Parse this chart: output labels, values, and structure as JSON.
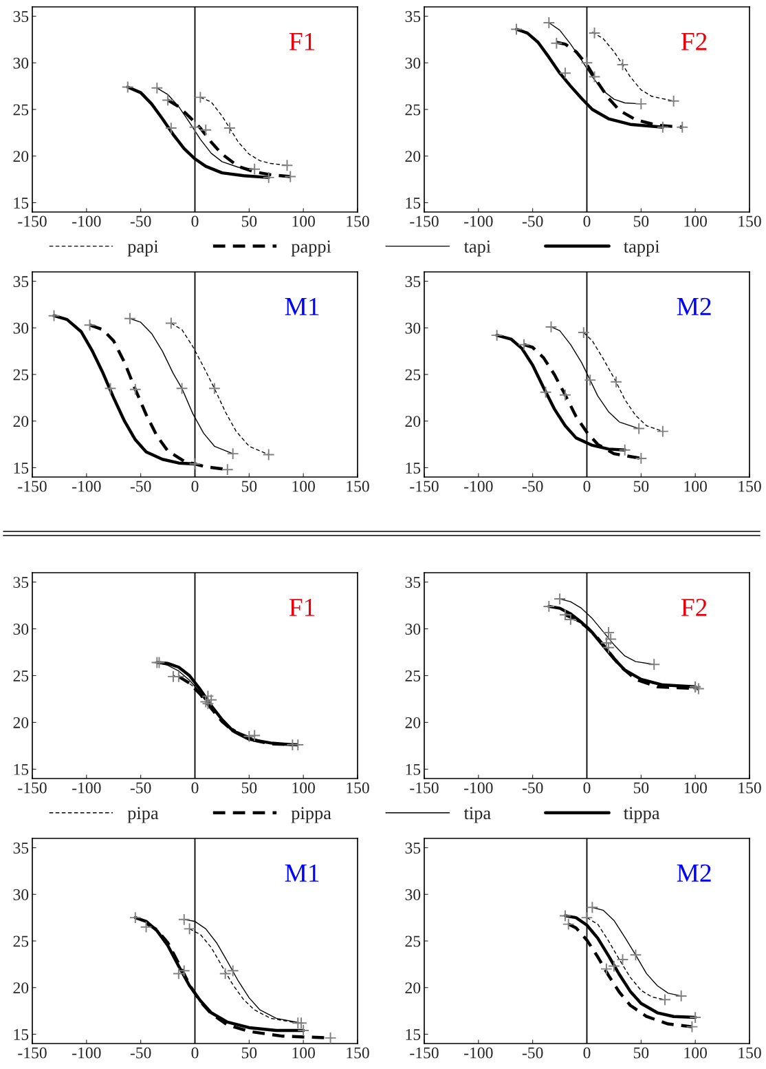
{
  "chart_data": [
    {
      "type": "line",
      "title": "F1",
      "xlim": [
        -150,
        150
      ],
      "ylim": [
        14,
        36
      ],
      "xticks": [
        -150,
        -100,
        -50,
        0,
        50,
        100,
        150
      ],
      "yticks": [
        15,
        20,
        25,
        30,
        35
      ],
      "legend": "bottom",
      "ref_lines": [
        {
          "axis": "x",
          "value": 0,
          "color": "#000000"
        }
      ],
      "series": [
        {
          "type": "line",
          "name": "papi",
          "line_style": "dashed",
          "color": "#000000",
          "x": [
            5,
            15,
            25,
            32,
            40,
            50,
            60,
            70,
            85
          ],
          "values": [
            26.3,
            25.8,
            24.3,
            23,
            21.5,
            20.2,
            19.5,
            19.2,
            19.0
          ]
        },
        {
          "type": "line",
          "name": "pappi",
          "line_style": "dashed",
          "color": "#000000",
          "x": [
            -25,
            -15,
            -5,
            5,
            15,
            25,
            40,
            55,
            70,
            88
          ],
          "values": [
            26.0,
            25.3,
            24.2,
            23.0,
            21.5,
            20.2,
            18.9,
            18.3,
            18.0,
            17.8
          ]
        },
        {
          "type": "line",
          "name": "tapi",
          "line_style": "solid",
          "color": "#000000",
          "x": [
            -35,
            -25,
            -15,
            -5,
            5,
            15,
            25,
            40,
            55
          ],
          "values": [
            27.3,
            26.6,
            25.3,
            23.6,
            21.8,
            20.3,
            19.4,
            18.8,
            18.6
          ]
        },
        {
          "type": "line",
          "name": "tappi",
          "line_style": "solid",
          "color": "#000000",
          "x": [
            -62,
            -50,
            -40,
            -30,
            -20,
            -10,
            0,
            10,
            25,
            45,
            68
          ],
          "values": [
            27.4,
            26.8,
            25.6,
            24.0,
            22.3,
            20.8,
            19.7,
            18.9,
            18.2,
            17.9,
            17.7
          ]
        },
        {
          "type": "scatter",
          "marker": "cross",
          "color": "#808080",
          "x": [
            5,
            32,
            85,
            -25,
            10,
            88,
            -35,
            0,
            55,
            -62,
            -22,
            68
          ],
          "values": [
            26.3,
            23,
            19,
            26,
            22.8,
            17.8,
            27.3,
            23.1,
            18.6,
            27.4,
            23.0,
            17.7
          ]
        }
      ]
    },
    {
      "type": "line",
      "title": "F2",
      "xlim": [
        -150,
        150
      ],
      "ylim": [
        14,
        36
      ],
      "xticks": [
        -150,
        -100,
        -50,
        0,
        50,
        100,
        150
      ],
      "yticks": [
        15,
        20,
        25,
        30,
        35
      ],
      "ref_lines": [
        {
          "axis": "x",
          "value": 0,
          "color": "#000000"
        }
      ],
      "series": [
        {
          "type": "line",
          "line_style": "dashed",
          "color": "#000000",
          "x": [
            5,
            15,
            25,
            33,
            40,
            50,
            60,
            80
          ],
          "values": [
            33.3,
            32.6,
            31.2,
            29.8,
            28.5,
            27.1,
            26.4,
            25.9
          ]
        },
        {
          "type": "line",
          "line_style": "dashed",
          "color": "#000000",
          "x": [
            -28,
            -20,
            -10,
            0,
            10,
            20,
            30,
            45,
            65,
            88
          ],
          "values": [
            32.2,
            32.0,
            31.2,
            29.8,
            27.9,
            26.2,
            24.9,
            23.9,
            23.3,
            23.1
          ]
        },
        {
          "type": "line",
          "line_style": "solid",
          "color": "#000000",
          "x": [
            -35,
            -25,
            -15,
            -5,
            5,
            15,
            25,
            35,
            50
          ],
          "values": [
            34.3,
            33.5,
            32.0,
            30.3,
            28.5,
            27.0,
            26.1,
            25.7,
            25.6
          ]
        },
        {
          "type": "line",
          "line_style": "solid",
          "color": "#000000",
          "x": [
            -65,
            -55,
            -45,
            -35,
            -25,
            -15,
            -5,
            5,
            20,
            40,
            70
          ],
          "values": [
            33.6,
            33.2,
            32.2,
            30.6,
            28.9,
            27.5,
            26.2,
            25.0,
            24.0,
            23.4,
            23.1
          ]
        },
        {
          "type": "scatter",
          "marker": "cross",
          "color": "#808080",
          "x": [
            7,
            33,
            80,
            -28,
            7,
            88,
            -35,
            0,
            50,
            -65,
            -20,
            70
          ],
          "values": [
            33.2,
            29.8,
            25.9,
            32.1,
            28.5,
            23.1,
            34.3,
            30.0,
            25.6,
            33.6,
            28.9,
            23.1
          ]
        }
      ]
    },
    {
      "type": "line",
      "title": "M1",
      "xlim": [
        -150,
        150
      ],
      "ylim": [
        14,
        36
      ],
      "xticks": [
        -150,
        -100,
        -50,
        0,
        50,
        100,
        150
      ],
      "yticks": [
        15,
        20,
        25,
        30,
        35
      ],
      "ref_lines": [
        {
          "axis": "x",
          "value": 0,
          "color": "#000000"
        }
      ],
      "series": [
        {
          "type": "line",
          "line_style": "dashed",
          "color": "#000000",
          "x": [
            -22,
            -12,
            -2,
            8,
            18,
            28,
            38,
            50,
            68
          ],
          "values": [
            30.5,
            29.8,
            28.0,
            25.8,
            23.5,
            21.0,
            18.9,
            17.3,
            16.4
          ]
        },
        {
          "type": "line",
          "line_style": "dashed",
          "color": "#000000",
          "x": [
            -97,
            -85,
            -75,
            -65,
            -55,
            -45,
            -35,
            -25,
            -10,
            10,
            30
          ],
          "values": [
            30.3,
            29.8,
            28.6,
            26.3,
            23.4,
            20.7,
            18.4,
            16.8,
            15.7,
            15.1,
            14.8
          ]
        },
        {
          "type": "line",
          "line_style": "solid",
          "color": "#000000",
          "x": [
            -60,
            -50,
            -40,
            -30,
            -20,
            -12,
            -2,
            8,
            18,
            35
          ],
          "values": [
            31,
            30.6,
            29.4,
            27.5,
            25.1,
            23.5,
            20.8,
            18.7,
            17.3,
            16.5
          ]
        },
        {
          "type": "line",
          "line_style": "solid",
          "color": "#000000",
          "x": [
            -130,
            -118,
            -105,
            -95,
            -85,
            -75,
            -65,
            -55,
            -45,
            -30,
            -15,
            0
          ],
          "values": [
            31.3,
            30.9,
            29.6,
            27.6,
            25.2,
            22.5,
            20.0,
            18.0,
            16.7,
            15.9,
            15.5,
            15.4
          ]
        },
        {
          "type": "scatter",
          "marker": "cross",
          "color": "#808080",
          "x": [
            -22,
            18,
            68,
            -97,
            -55,
            30,
            -60,
            -12,
            35,
            -130,
            -78,
            0
          ],
          "values": [
            30.5,
            23.5,
            16.4,
            30.3,
            23.4,
            14.8,
            31,
            23.5,
            16.5,
            31.3,
            23.5,
            15.4
          ]
        }
      ]
    },
    {
      "type": "line",
      "title": "M2",
      "xlim": [
        -150,
        150
      ],
      "ylim": [
        14,
        36
      ],
      "xticks": [
        -150,
        -100,
        -50,
        0,
        50,
        100,
        150
      ],
      "yticks": [
        15,
        20,
        25,
        30,
        35
      ],
      "ref_lines": [
        {
          "axis": "x",
          "value": 0,
          "color": "#000000"
        }
      ],
      "series": [
        {
          "type": "line",
          "line_style": "dashed",
          "color": "#000000",
          "x": [
            -3,
            5,
            15,
            27,
            35,
            45,
            55,
            70
          ],
          "values": [
            29.5,
            28.6,
            26.7,
            24.2,
            22.3,
            20.6,
            19.5,
            18.9
          ]
        },
        {
          "type": "line",
          "line_style": "dashed",
          "color": "#000000",
          "x": [
            -58,
            -50,
            -40,
            -30,
            -20,
            -10,
            0,
            10,
            25,
            50
          ],
          "values": [
            28.2,
            27.9,
            26.8,
            25.0,
            22.8,
            20.5,
            18.8,
            17.5,
            16.5,
            16.0
          ]
        },
        {
          "type": "line",
          "line_style": "solid",
          "color": "#000000",
          "x": [
            -33,
            -25,
            -15,
            -5,
            3,
            10,
            20,
            30,
            48
          ],
          "values": [
            30.1,
            29.7,
            28.2,
            26.3,
            24.4,
            22.7,
            21.0,
            19.9,
            19.2
          ]
        },
        {
          "type": "line",
          "line_style": "solid",
          "color": "#000000",
          "x": [
            -83,
            -70,
            -60,
            -50,
            -40,
            -30,
            -20,
            -10,
            5,
            20,
            35
          ],
          "values": [
            29.2,
            28.8,
            27.8,
            26.0,
            23.6,
            21.3,
            19.5,
            18.2,
            17.4,
            17.0,
            16.9
          ]
        },
        {
          "type": "scatter",
          "marker": "cross",
          "color": "#808080",
          "x": [
            -3,
            27,
            70,
            -58,
            -20,
            50,
            -33,
            3,
            48,
            -83,
            -38,
            35
          ],
          "values": [
            29.5,
            24.2,
            18.9,
            28.2,
            22.8,
            16.0,
            30.1,
            24.4,
            19.2,
            29.2,
            23.1,
            16.9
          ]
        }
      ]
    },
    {
      "type": "line",
      "title": "F1",
      "xlim": [
        -150,
        150
      ],
      "ylim": [
        14,
        36
      ],
      "xticks": [
        -150,
        -100,
        -50,
        0,
        50,
        100,
        150
      ],
      "yticks": [
        15,
        20,
        25,
        30,
        35
      ],
      "legend": "bottom",
      "ref_lines": [
        {
          "axis": "x",
          "value": 0,
          "color": "#000000"
        }
      ],
      "series": [
        {
          "type": "line",
          "name": "pipa",
          "line_style": "dashed",
          "color": "#000000",
          "x": [
            -20,
            -10,
            0,
            10,
            20,
            30,
            45,
            65,
            95
          ],
          "values": [
            25.0,
            24.6,
            23.7,
            22.3,
            20.9,
            19.7,
            18.6,
            17.9,
            17.6
          ]
        },
        {
          "type": "line",
          "name": "pippa",
          "line_style": "dashed",
          "color": "#000000",
          "x": [
            -15,
            -5,
            5,
            15,
            25,
            35,
            50,
            70,
            95
          ],
          "values": [
            24.9,
            24.2,
            23.0,
            21.5,
            20.1,
            19.1,
            18.2,
            17.7,
            17.6
          ]
        },
        {
          "type": "line",
          "name": "tipa",
          "line_style": "solid",
          "color": "#000000",
          "x": [
            -35,
            -25,
            -15,
            -5,
            5,
            15,
            25,
            35,
            50
          ],
          "values": [
            26.4,
            26.1,
            25.5,
            24.5,
            23.2,
            21.7,
            20.3,
            19.2,
            18.5
          ]
        },
        {
          "type": "line",
          "name": "tippa",
          "line_style": "solid",
          "color": "#000000",
          "x": [
            -35,
            -25,
            -15,
            -5,
            5,
            15,
            25,
            35,
            50,
            70,
            90
          ],
          "values": [
            26.4,
            26.3,
            25.9,
            25.0,
            23.5,
            21.8,
            20.3,
            19.1,
            18.2,
            17.8,
            17.6
          ]
        },
        {
          "type": "scatter",
          "marker": "cross",
          "color": "#808080",
          "x": [
            -20,
            10,
            55,
            -15,
            12,
            95,
            -35,
            15,
            50,
            -33,
            12,
            90
          ],
          "values": [
            24.9,
            22.2,
            18.6,
            24.9,
            22.0,
            17.6,
            26.4,
            22.4,
            18.5,
            26.4,
            22.8,
            17.6
          ]
        }
      ]
    },
    {
      "type": "line",
      "title": "F2",
      "xlim": [
        -150,
        150
      ],
      "ylim": [
        14,
        36
      ],
      "xticks": [
        -150,
        -100,
        -50,
        0,
        50,
        100,
        150
      ],
      "yticks": [
        15,
        20,
        25,
        30,
        35
      ],
      "ref_lines": [
        {
          "axis": "x",
          "value": 0,
          "color": "#000000"
        }
      ],
      "series": [
        {
          "type": "line",
          "line_style": "dashed",
          "color": "#000000",
          "x": [
            -15,
            -5,
            5,
            15,
            25,
            35,
            50,
            70,
            100
          ],
          "values": [
            31.1,
            30.6,
            29.6,
            28.4,
            27.0,
            25.7,
            24.5,
            23.9,
            23.7
          ]
        },
        {
          "type": "line",
          "line_style": "dashed",
          "color": "#000000",
          "x": [
            -20,
            -10,
            0,
            10,
            20,
            30,
            45,
            65,
            103
          ],
          "values": [
            31.5,
            31.0,
            30.2,
            29.0,
            27.6,
            26.1,
            24.6,
            23.8,
            23.6
          ]
        },
        {
          "type": "line",
          "line_style": "solid",
          "color": "#000000",
          "x": [
            -25,
            -15,
            -5,
            5,
            15,
            25,
            35,
            45,
            62
          ],
          "values": [
            33.2,
            32.9,
            32.2,
            31.1,
            29.7,
            28.3,
            27.1,
            26.5,
            26.2
          ]
        },
        {
          "type": "line",
          "line_style": "solid",
          "color": "#000000",
          "x": [
            -35,
            -25,
            -15,
            -5,
            5,
            15,
            25,
            35,
            50,
            70,
            100
          ],
          "values": [
            32.4,
            32.2,
            31.6,
            30.7,
            29.6,
            28.2,
            26.8,
            25.6,
            24.6,
            24.0,
            23.8
          ]
        },
        {
          "type": "scatter",
          "marker": "cross",
          "color": "#808080",
          "x": [
            -15,
            20,
            100,
            -20,
            18,
            103,
            -25,
            20,
            62,
            -35,
            22,
            100
          ],
          "values": [
            31.0,
            28.0,
            23.8,
            31.5,
            28.5,
            23.6,
            33.2,
            29.6,
            26.2,
            32.4,
            28.9,
            23.8
          ]
        }
      ]
    },
    {
      "type": "line",
      "title": "M1",
      "xlim": [
        -150,
        150
      ],
      "ylim": [
        14,
        36
      ],
      "xticks": [
        -150,
        -100,
        -50,
        0,
        50,
        100,
        150
      ],
      "yticks": [
        15,
        20,
        25,
        30,
        35
      ],
      "ref_lines": [
        {
          "axis": "x",
          "value": 0,
          "color": "#000000"
        }
      ],
      "series": [
        {
          "type": "line",
          "line_style": "dashed",
          "color": "#000000",
          "x": [
            -5,
            5,
            15,
            25,
            35,
            45,
            55,
            70,
            95
          ],
          "values": [
            26.3,
            25.7,
            24.3,
            22.3,
            20.3,
            18.7,
            17.6,
            16.7,
            16.2
          ]
        },
        {
          "type": "line",
          "line_style": "dashed",
          "color": "#000000",
          "x": [
            -45,
            -35,
            -25,
            -15,
            -5,
            5,
            15,
            30,
            50,
            80,
            125
          ],
          "values": [
            26.9,
            26.2,
            24.8,
            22.6,
            20.3,
            18.5,
            17.2,
            16.0,
            15.3,
            14.8,
            14.6
          ]
        },
        {
          "type": "line",
          "line_style": "solid",
          "color": "#000000",
          "x": [
            -10,
            0,
            10,
            20,
            30,
            40,
            50,
            60,
            75,
            98
          ],
          "values": [
            27.3,
            27.1,
            26.3,
            24.8,
            22.8,
            20.7,
            18.9,
            17.6,
            16.7,
            16.2
          ]
        },
        {
          "type": "line",
          "line_style": "solid",
          "color": "#000000",
          "x": [
            -55,
            -45,
            -35,
            -25,
            -15,
            -5,
            5,
            15,
            30,
            50,
            75,
            100
          ],
          "values": [
            27.5,
            27.1,
            26.1,
            24.5,
            22.3,
            20.2,
            18.6,
            17.3,
            16.3,
            15.7,
            15.4,
            15.4
          ]
        },
        {
          "type": "scatter",
          "marker": "cross",
          "color": "#808080",
          "x": [
            -5,
            28,
            95,
            -45,
            -15,
            125,
            -10,
            35,
            98,
            -55,
            -10,
            100
          ],
          "values": [
            26.3,
            21.5,
            16.2,
            26.5,
            21.5,
            14.6,
            27.3,
            21.8,
            16.2,
            27.5,
            21.8,
            15.4
          ]
        }
      ]
    },
    {
      "type": "line",
      "title": "M2",
      "xlim": [
        -150,
        150
      ],
      "ylim": [
        14,
        36
      ],
      "xticks": [
        -150,
        -100,
        -50,
        0,
        50,
        100,
        150
      ],
      "yticks": [
        15,
        20,
        25,
        30,
        35
      ],
      "ref_lines": [
        {
          "axis": "x",
          "value": 0,
          "color": "#000000"
        }
      ],
      "series": [
        {
          "type": "line",
          "line_style": "dashed",
          "color": "#000000",
          "x": [
            0,
            10,
            20,
            30,
            40,
            50,
            60,
            72
          ],
          "values": [
            27.5,
            26.8,
            25.0,
            23.0,
            21.1,
            19.7,
            19.0,
            18.7
          ]
        },
        {
          "type": "line",
          "line_style": "dashed",
          "color": "#000000",
          "x": [
            -17,
            -10,
            0,
            10,
            20,
            30,
            40,
            55,
            75,
            97
          ],
          "values": [
            26.8,
            26.4,
            25.1,
            23.3,
            21.3,
            19.5,
            18.1,
            16.9,
            16.1,
            15.8
          ]
        },
        {
          "type": "line",
          "line_style": "solid",
          "color": "#000000",
          "x": [
            5,
            15,
            25,
            35,
            45,
            55,
            65,
            75,
            87
          ],
          "values": [
            28.6,
            28.3,
            27.2,
            25.4,
            23.5,
            21.5,
            20.2,
            19.4,
            19.1
          ]
        },
        {
          "type": "line",
          "line_style": "solid",
          "color": "#000000",
          "x": [
            -20,
            -10,
            0,
            10,
            20,
            30,
            40,
            50,
            65,
            80,
            100
          ],
          "values": [
            27.7,
            27.5,
            26.7,
            25.3,
            23.4,
            21.4,
            19.6,
            18.3,
            17.3,
            16.9,
            16.8
          ]
        },
        {
          "type": "scatter",
          "marker": "cross",
          "color": "#808080",
          "x": [
            0,
            33,
            72,
            -17,
            18,
            97,
            5,
            45,
            87,
            -20,
            25,
            100
          ],
          "values": [
            27.5,
            23.0,
            18.7,
            26.8,
            22.0,
            15.8,
            28.6,
            23.5,
            19.1,
            27.7,
            22.3,
            16.8
          ]
        }
      ]
    }
  ]
}
